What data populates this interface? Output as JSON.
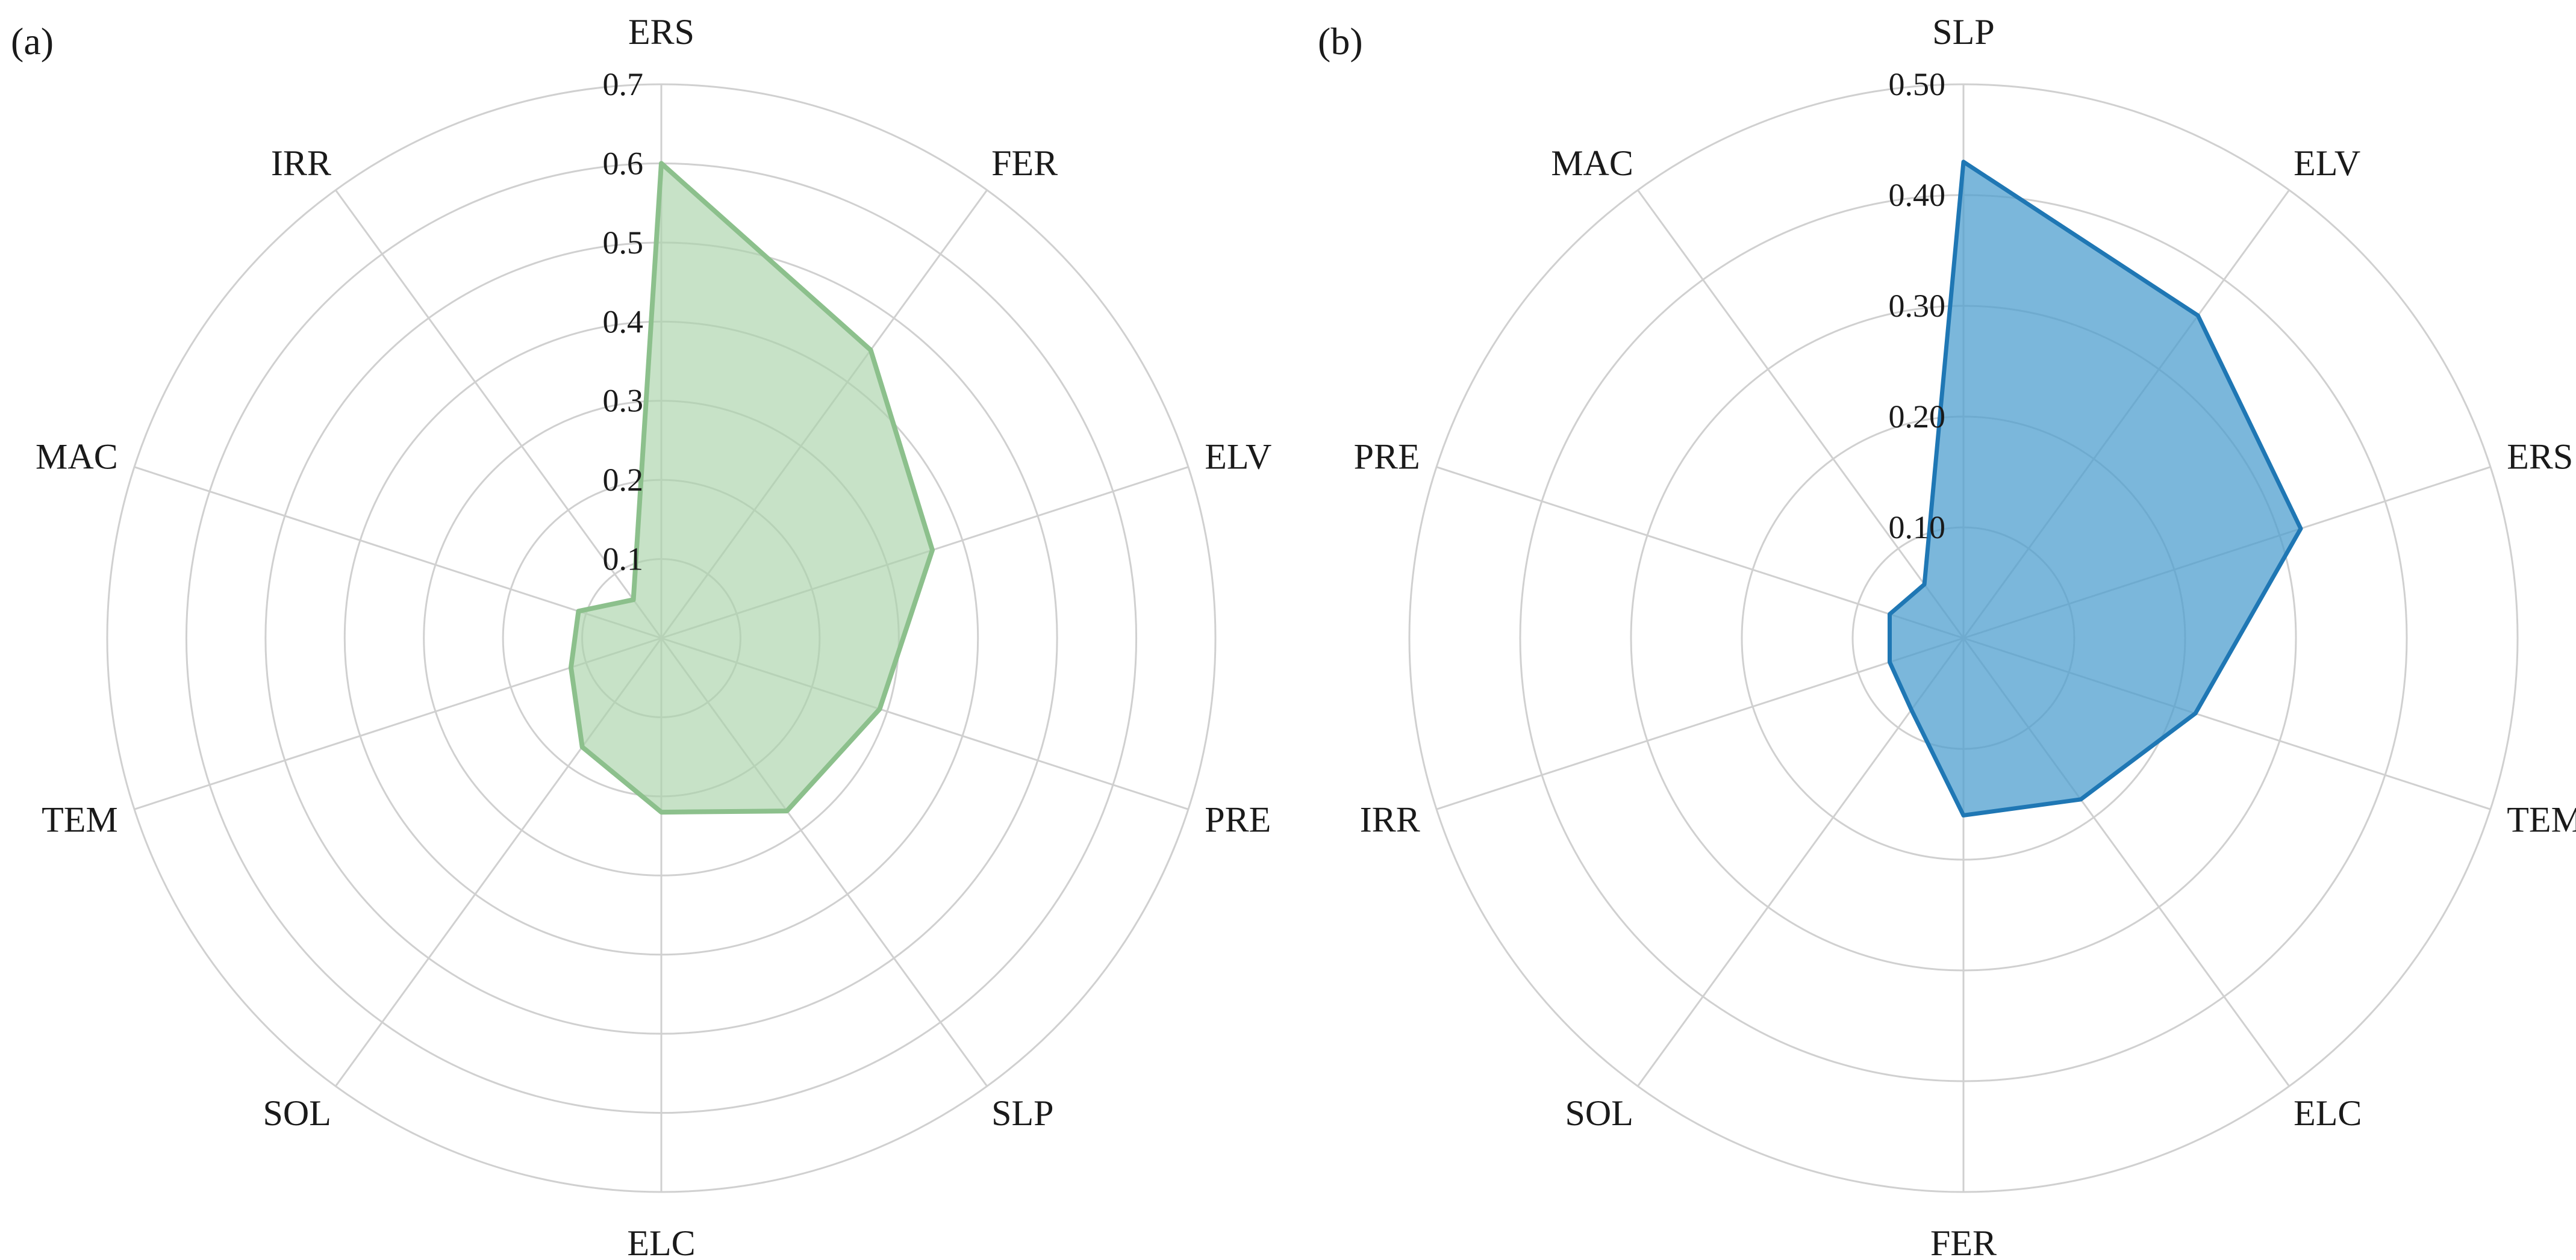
{
  "chart_data": [
    {
      "type": "radar",
      "panel_label": "(a)",
      "categories": [
        "ERS",
        "FER",
        "ELV",
        "PRE",
        "SLP",
        "ELC",
        "SOL",
        "TEM",
        "MAC",
        "IRR"
      ],
      "values": [
        0.6,
        0.45,
        0.36,
        0.29,
        0.27,
        0.22,
        0.17,
        0.12,
        0.11,
        0.06
      ],
      "ylim": [
        0,
        0.7
      ],
      "ticks": [
        0.1,
        0.2,
        0.3,
        0.4,
        0.5,
        0.6,
        0.7
      ],
      "tick_labels": [
        "0.1",
        "0.2",
        "0.3",
        "0.4",
        "0.5",
        "0.6",
        "0.7"
      ],
      "stroke_color": "#8cc08c",
      "fill_color": "#a9d3a9",
      "grid": true
    },
    {
      "type": "radar",
      "panel_label": "(b)",
      "categories": [
        "SLP",
        "ELV",
        "ERS",
        "TEM",
        "ELC",
        "FER",
        "SOL",
        "IRR",
        "PRE",
        "MAC"
      ],
      "values": [
        0.43,
        0.36,
        0.32,
        0.22,
        0.18,
        0.16,
        0.08,
        0.07,
        0.07,
        0.06
      ],
      "ylim": [
        0,
        0.5
      ],
      "ticks": [
        0.1,
        0.2,
        0.3,
        0.4,
        0.5
      ],
      "tick_labels": [
        "0.10",
        "0.20",
        "0.30",
        "0.40",
        "0.50"
      ],
      "stroke_color": "#1f77b4",
      "fill_color": "#4f9fcf",
      "grid": true
    }
  ]
}
